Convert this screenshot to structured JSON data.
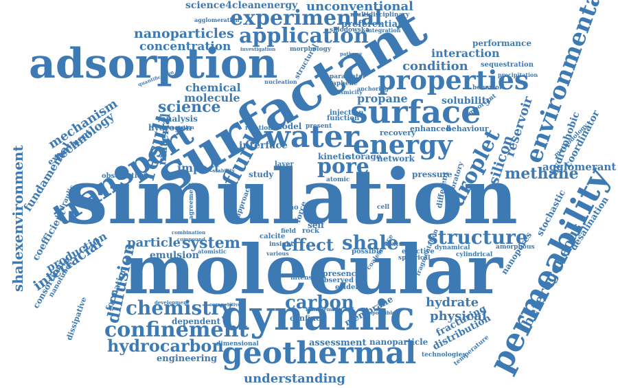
{
  "colors": {
    "primary": "#3d7ab4",
    "background": "#ffffff"
  },
  "words": [
    "simulation",
    "molecular",
    "surfactant",
    "adsorption",
    "dynamic",
    "surface",
    "permeability",
    "geothermal",
    "transport",
    "water",
    "energy",
    "properties",
    "environmental",
    "experimental",
    "application",
    "confinement",
    "fluid",
    "droplet",
    "chemistry",
    "nanoparticles",
    "carbon",
    "structure",
    "shale",
    "result",
    "pore",
    "methane",
    "hydrocarbon",
    "diffusion",
    "system",
    "science4cleanenergy",
    "unconventional",
    "science",
    "shalexenvironment",
    "concentration",
    "effect",
    "particle",
    "understanding",
    "heterogeneous",
    "hydrate",
    "physical",
    "interfacial",
    "silicon",
    "reservoir",
    "condition",
    "interaction",
    "performance",
    "chemical",
    "molecule",
    "mechanism",
    "technology",
    "fundamental",
    "production",
    "coefficient",
    "material",
    "hydrophobic",
    "coordinator",
    "agglomerant",
    "desalination",
    "nanopores",
    "fracturing",
    "distribution",
    "engineering",
    "assessment",
    "nanoparticle",
    "membrane",
    "confined",
    "dependent",
    "emulsion",
    "propane",
    "solubility",
    "sequestration",
    "impact",
    "stochastic",
    "analysis",
    "hydrogen",
    "consortium",
    "kinetic",
    "storage",
    "network",
    "pressure",
    "model",
    "study",
    "layer",
    "recovery",
    "enhanced",
    "behaviour",
    "experiment",
    "formation",
    "dissipative",
    "nanotubes",
    "multidisciplinary",
    "preferential",
    "sklodowska",
    "integration",
    "agglomeration",
    "investigation",
    "morphology",
    "observation",
    "presence",
    "observed",
    "evidence",
    "intensity",
    "possible",
    "effective",
    "dynamical",
    "cylindrical",
    "amorphous",
    "atomistic",
    "insight",
    "mixture",
    "spherical",
    "different",
    "laboratory",
    "approach",
    "self",
    "rock",
    "field",
    "calcite",
    "nano",
    "force",
    "dimensional",
    "technologies",
    "temperature",
    "atomic",
    "injection",
    "function",
    "present",
    "relation",
    "generation",
    "parameter",
    "graphene",
    "nucleation",
    "anchoring",
    "seismicity",
    "structural",
    "important",
    "hydraulic",
    "methodology",
    "various",
    "combination",
    "compound",
    "agreement",
    "competitive",
    "development",
    "management",
    "responsible",
    "coalescence",
    "fragmentation",
    "cell",
    "pathway",
    "behavior",
    "precipitation",
    "quantification",
    "stability",
    "interface"
  ]
}
